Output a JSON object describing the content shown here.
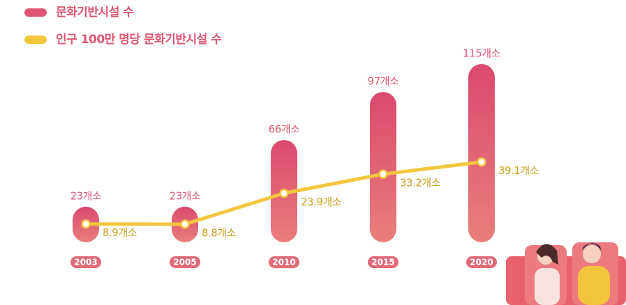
{
  "chart_data": {
    "type": "bar",
    "categories": [
      "2003",
      "2005",
      "2010",
      "2015",
      "2020"
    ],
    "series": [
      {
        "name": "문화기반시설 수",
        "color": "#de5674",
        "values": [
          23,
          23,
          66,
          97,
          115
        ],
        "value_labels": [
          "23개소",
          "23개소",
          "66개소",
          "97개소",
          "115개소"
        ]
      },
      {
        "name": "인구 100만 명당 문화기반시설 수",
        "type": "line",
        "axis": "y2",
        "color": "#f3c63f",
        "values": [
          8.9,
          8.8,
          23.9,
          33.2,
          39.1
        ],
        "value_labels": [
          "8.9개소",
          "8.8개소",
          "23.9개소",
          "33.2개소",
          "39.1개소"
        ]
      }
    ]
  }
}
